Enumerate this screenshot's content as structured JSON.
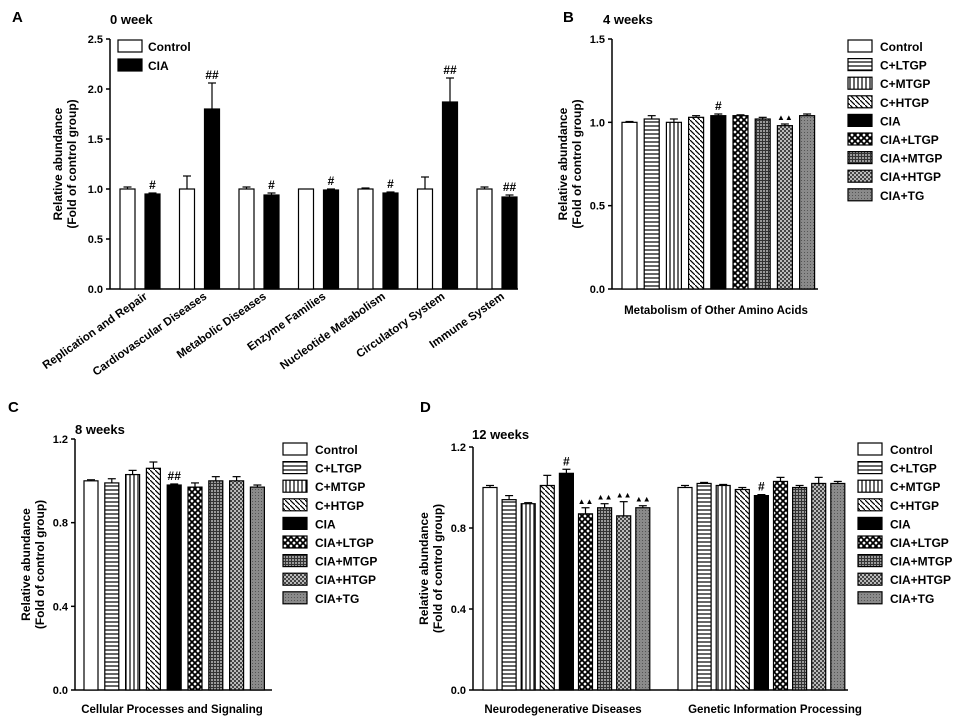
{
  "chart_data": [
    {
      "panel": "A",
      "type": "bar",
      "title": "0 week",
      "ylabel": "Relative abundance\n(Fold of control group)",
      "ylim": [
        0,
        2.5
      ],
      "yticks": [
        "0.0",
        "0.5",
        "1.0",
        "1.5",
        "2.0",
        "2.5"
      ],
      "categories": [
        "Replication and Repair",
        "Cardiovascular Diseases",
        "Metabolic Diseases",
        "Enzyme Families",
        "Nucleotide Metabolism",
        "Circulatory System",
        "Immune System"
      ],
      "series": [
        {
          "name": "Control",
          "pattern": "white",
          "values": [
            1.0,
            1.0,
            1.0,
            1.0,
            1.0,
            1.0,
            1.0
          ],
          "errors": [
            0.02,
            0.13,
            0.02,
            0.0,
            0.01,
            0.12,
            0.02
          ]
        },
        {
          "name": "CIA",
          "pattern": "black",
          "values": [
            0.95,
            1.8,
            0.94,
            0.99,
            0.96,
            1.87,
            0.92
          ],
          "errors": [
            0.01,
            0.26,
            0.02,
            0.01,
            0.01,
            0.24,
            0.02
          ]
        }
      ],
      "annotations": [
        {
          "category": 0,
          "series": 1,
          "text": "#"
        },
        {
          "category": 1,
          "series": 1,
          "text": "##"
        },
        {
          "category": 2,
          "series": 1,
          "text": "#"
        },
        {
          "category": 3,
          "series": 1,
          "text": "#"
        },
        {
          "category": 4,
          "series": 1,
          "text": "#"
        },
        {
          "category": 5,
          "series": 1,
          "text": "##"
        },
        {
          "category": 6,
          "series": 1,
          "text": "##"
        }
      ],
      "legend": [
        "Control",
        "CIA"
      ],
      "legend_position": "top-left"
    },
    {
      "panel": "B",
      "type": "bar",
      "title": "4 weeks",
      "ylabel": "Relative abundance\n(Fold of control group)",
      "ylim": [
        0,
        1.5
      ],
      "yticks": [
        "0.0",
        "0.5",
        "1.0",
        "1.5"
      ],
      "categories": [
        "Metabolism of Other Amino Acids"
      ],
      "series": [
        {
          "name": "Control",
          "pattern": "white",
          "values": [
            1.0
          ],
          "errors": [
            0.005
          ]
        },
        {
          "name": "C+LTGP",
          "pattern": "hstripe",
          "values": [
            1.02
          ],
          "errors": [
            0.02
          ]
        },
        {
          "name": "C+MTGP",
          "pattern": "vstripe",
          "values": [
            1.0
          ],
          "errors": [
            0.02
          ]
        },
        {
          "name": "C+HTGP",
          "pattern": "diag",
          "values": [
            1.03
          ],
          "errors": [
            0.01
          ]
        },
        {
          "name": "CIA",
          "pattern": "black",
          "values": [
            1.04
          ],
          "errors": [
            0.01
          ]
        },
        {
          "name": "CIA+LTGP",
          "pattern": "xhatch",
          "values": [
            1.04
          ],
          "errors": [
            0.005
          ]
        },
        {
          "name": "CIA+MTGP",
          "pattern": "grid",
          "values": [
            1.02
          ],
          "errors": [
            0.01
          ]
        },
        {
          "name": "CIA+HTGP",
          "pattern": "checker",
          "values": [
            0.98
          ],
          "errors": [
            0.01
          ]
        },
        {
          "name": "CIA+TG",
          "pattern": "dots",
          "values": [
            1.04
          ],
          "errors": [
            0.01
          ]
        }
      ],
      "annotations": [
        {
          "category": 0,
          "series": 4,
          "text": "#"
        },
        {
          "category": 0,
          "series": 7,
          "text": "▲▲"
        }
      ],
      "legend": [
        "Control",
        "C+LTGP",
        "C+MTGP",
        "C+HTGP",
        "CIA",
        "CIA+LTGP",
        "CIA+MTGP",
        "CIA+HTGP",
        "CIA+TG"
      ],
      "legend_position": "right"
    },
    {
      "panel": "C",
      "type": "bar",
      "title": "8 weeks",
      "ylabel": "Relative abundance\n(Fold of control group)",
      "ylim": [
        0,
        1.2
      ],
      "yticks": [
        "0.0",
        "0.4",
        "0.8",
        "1.2"
      ],
      "categories": [
        "Cellular Processes and Signaling"
      ],
      "series": [
        {
          "name": "Control",
          "pattern": "white",
          "values": [
            1.0
          ],
          "errors": [
            0.005
          ]
        },
        {
          "name": "C+LTGP",
          "pattern": "hstripe",
          "values": [
            0.99
          ],
          "errors": [
            0.02
          ]
        },
        {
          "name": "C+MTGP",
          "pattern": "vstripe",
          "values": [
            1.03
          ],
          "errors": [
            0.02
          ]
        },
        {
          "name": "C+HTGP",
          "pattern": "diag",
          "values": [
            1.06
          ],
          "errors": [
            0.03
          ]
        },
        {
          "name": "CIA",
          "pattern": "black",
          "values": [
            0.98
          ],
          "errors": [
            0.005
          ]
        },
        {
          "name": "CIA+LTGP",
          "pattern": "xhatch",
          "values": [
            0.97
          ],
          "errors": [
            0.02
          ]
        },
        {
          "name": "CIA+MTGP",
          "pattern": "grid",
          "values": [
            1.0
          ],
          "errors": [
            0.02
          ]
        },
        {
          "name": "CIA+HTGP",
          "pattern": "checker",
          "values": [
            1.0
          ],
          "errors": [
            0.02
          ]
        },
        {
          "name": "CIA+TG",
          "pattern": "dots",
          "values": [
            0.97
          ],
          "errors": [
            0.01
          ]
        }
      ],
      "annotations": [
        {
          "category": 0,
          "series": 4,
          "text": "##"
        }
      ],
      "legend": [
        "Control",
        "C+LTGP",
        "C+MTGP",
        "C+HTGP",
        "CIA",
        "CIA+LTGP",
        "CIA+MTGP",
        "CIA+HTGP",
        "CIA+TG"
      ],
      "legend_position": "right"
    },
    {
      "panel": "D",
      "type": "bar",
      "title": "12 weeks",
      "ylabel": "Relative abundance\n(Fold of control group)",
      "ylim": [
        0,
        1.2
      ],
      "yticks": [
        "0.0",
        "0.4",
        "0.8",
        "1.2"
      ],
      "categories": [
        "Neurodegenerative Diseases",
        "Genetic Information Processing"
      ],
      "series": [
        {
          "name": "Control",
          "pattern": "white",
          "values": [
            1.0,
            1.0
          ],
          "errors": [
            0.01,
            0.01
          ]
        },
        {
          "name": "C+LTGP",
          "pattern": "hstripe",
          "values": [
            0.94,
            1.02
          ],
          "errors": [
            0.02,
            0.005
          ]
        },
        {
          "name": "C+MTGP",
          "pattern": "vstripe",
          "values": [
            0.92,
            1.01
          ],
          "errors": [
            0.005,
            0.005
          ]
        },
        {
          "name": "C+HTGP",
          "pattern": "diag",
          "values": [
            1.01,
            0.99
          ],
          "errors": [
            0.05,
            0.01
          ]
        },
        {
          "name": "CIA",
          "pattern": "black",
          "values": [
            1.07,
            0.96
          ],
          "errors": [
            0.02,
            0.005
          ]
        },
        {
          "name": "CIA+LTGP",
          "pattern": "xhatch",
          "values": [
            0.87,
            1.03
          ],
          "errors": [
            0.03,
            0.02
          ]
        },
        {
          "name": "CIA+MTGP",
          "pattern": "grid",
          "values": [
            0.9,
            1.0
          ],
          "errors": [
            0.02,
            0.01
          ]
        },
        {
          "name": "CIA+HTGP",
          "pattern": "checker",
          "values": [
            0.86,
            1.02
          ],
          "errors": [
            0.07,
            0.03
          ]
        },
        {
          "name": "CIA+TG",
          "pattern": "dots",
          "values": [
            0.9,
            1.02
          ],
          "errors": [
            0.01,
            0.01
          ]
        }
      ],
      "annotations": [
        {
          "category": 0,
          "series": 4,
          "text": "#"
        },
        {
          "category": 0,
          "series": 5,
          "text": "▲▲"
        },
        {
          "category": 0,
          "series": 6,
          "text": "▲▲"
        },
        {
          "category": 0,
          "series": 7,
          "text": "▲▲"
        },
        {
          "category": 0,
          "series": 8,
          "text": "▲▲"
        },
        {
          "category": 1,
          "series": 4,
          "text": "#"
        }
      ],
      "legend": [
        "Control",
        "C+LTGP",
        "C+MTGP",
        "C+HTGP",
        "CIA",
        "CIA+LTGP",
        "CIA+MTGP",
        "CIA+HTGP",
        "CIA+TG"
      ],
      "legend_position": "right"
    }
  ]
}
